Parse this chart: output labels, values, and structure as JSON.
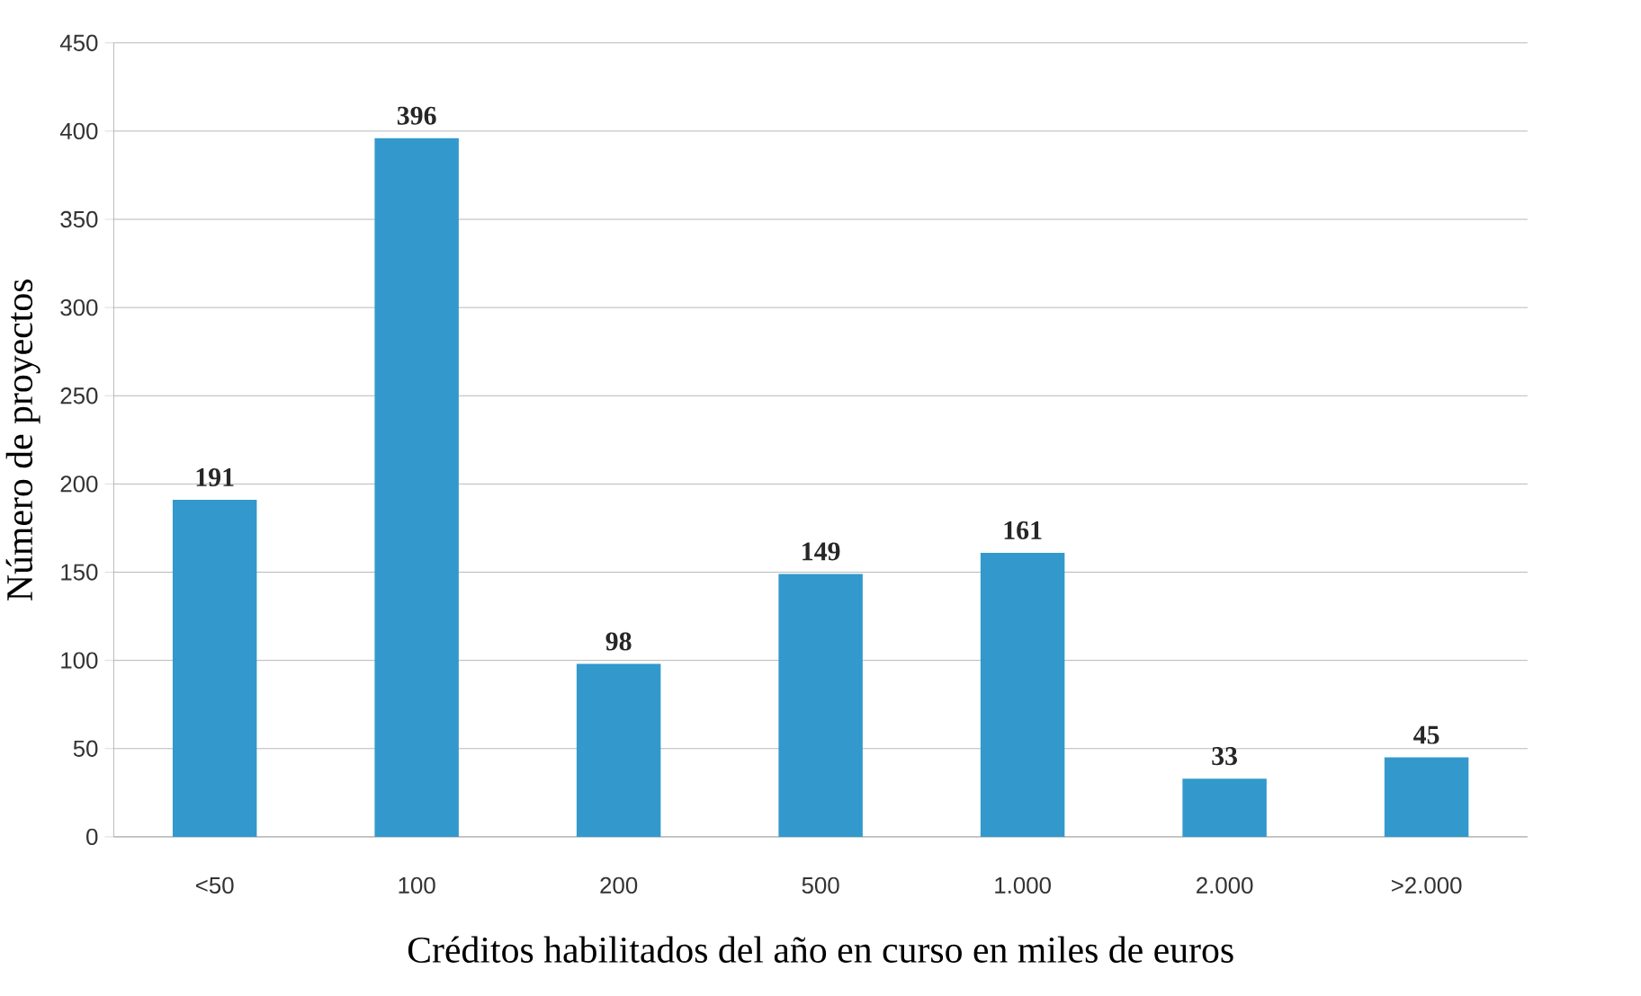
{
  "chart_data": {
    "type": "bar",
    "xlabel": "Créditos habilitados del año en curso en miles de euros",
    "ylabel": "Número de proyectos",
    "categories": [
      "<50",
      "100",
      "200",
      "500",
      "1.000",
      "2.000",
      ">2.000"
    ],
    "values": [
      191,
      396,
      98,
      149,
      161,
      33,
      45
    ],
    "color": "#3399cc",
    "ylim": [
      0,
      450
    ],
    "yticks": [
      0,
      50,
      100,
      150,
      200,
      250,
      300,
      350,
      400,
      450
    ],
    "grid": "y",
    "data_labels": true
  }
}
